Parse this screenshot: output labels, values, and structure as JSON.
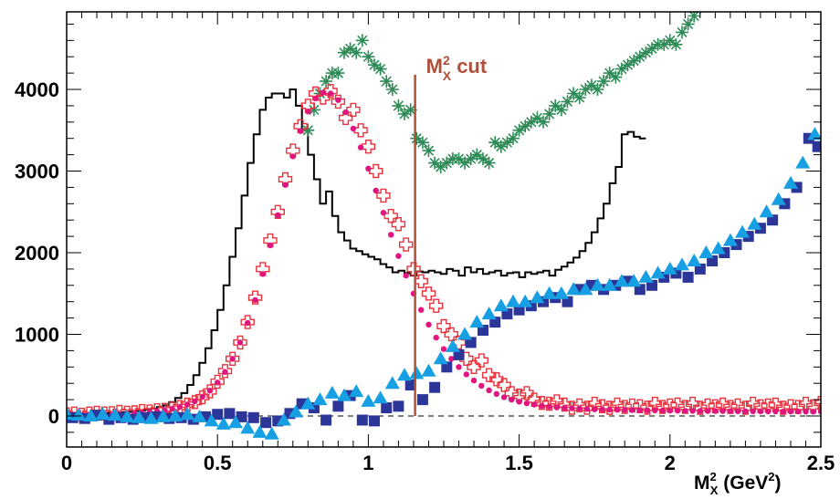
{
  "chart_data": {
    "type": "scatter",
    "title": "",
    "xlabel": {
      "base": "M",
      "sup": "2",
      "sub": "X",
      "unit": " (GeV",
      "unit_sup": "2",
      "unit_close": ")"
    },
    "ylabel": "",
    "xlim": [
      0,
      2.5
    ],
    "ylim": [
      -380,
      4950
    ],
    "x_ticks": [
      {
        "value": 0,
        "label": "0"
      },
      {
        "value": 0.5,
        "label": "0.5"
      },
      {
        "value": 1,
        "label": "1"
      },
      {
        "value": 1.5,
        "label": "1.5"
      },
      {
        "value": 2,
        "label": "2"
      },
      {
        "value": 2.5,
        "label": "2.5"
      }
    ],
    "y_ticks": [
      {
        "value": 0,
        "label": "0"
      },
      {
        "value": 1000,
        "label": "1000"
      },
      {
        "value": 2000,
        "label": "2000"
      },
      {
        "value": 3000,
        "label": "3000"
      },
      {
        "value": 4000,
        "label": "4000"
      }
    ],
    "cut": {
      "x": 1.155,
      "y_top": 4180,
      "label": {
        "base": "M",
        "sup": "2",
        "sub": "X",
        "text": " cut"
      },
      "color": "#b0503a"
    },
    "zero_line": {
      "y": 0,
      "style": "dashed"
    },
    "histogram": {
      "name": "",
      "color": "#000000",
      "bin_width": 0.02,
      "x_start": 0.0,
      "values": [
        10,
        15,
        20,
        20,
        25,
        30,
        35,
        40,
        40,
        45,
        50,
        60,
        70,
        80,
        90,
        110,
        130,
        170,
        220,
        280,
        380,
        500,
        650,
        830,
        1050,
        1300,
        1600,
        1950,
        2300,
        2700,
        3100,
        3450,
        3750,
        3900,
        3950,
        3950,
        3900,
        4000,
        3800,
        3500,
        3200,
        2900,
        2600,
        2750,
        2450,
        2250,
        2150,
        2050,
        2020,
        1980,
        1950,
        1920,
        1860,
        1820,
        1760,
        1780,
        1750,
        1720,
        1770,
        1760,
        1780,
        1760,
        1740,
        1800,
        1780,
        1720,
        1820,
        1760,
        1800,
        1740,
        1760,
        1780,
        1720,
        1750,
        1760,
        1700,
        1760,
        1740,
        1760,
        1780,
        1720,
        1790,
        1830,
        1880,
        1940,
        2020,
        2120,
        2250,
        2420,
        2600,
        2850,
        3050,
        3450,
        3480,
        3420,
        3400
      ]
    },
    "series": [
      {
        "name": "",
        "marker": "asterisk",
        "color": "#2e8b57",
        "x": [
          0.8,
          0.82,
          0.84,
          0.86,
          0.88,
          0.9,
          0.92,
          0.94,
          0.96,
          0.98,
          1.0,
          1.02,
          1.04,
          1.06,
          1.08,
          1.1,
          1.12,
          1.14,
          1.16,
          1.18,
          1.2,
          1.22,
          1.24,
          1.26,
          1.28,
          1.3,
          1.32,
          1.34,
          1.36,
          1.38,
          1.4,
          1.42,
          1.44,
          1.46,
          1.48,
          1.5,
          1.52,
          1.54,
          1.56,
          1.58,
          1.6,
          1.62,
          1.64,
          1.66,
          1.68,
          1.7,
          1.72,
          1.74,
          1.76,
          1.78,
          1.8,
          1.82,
          1.84,
          1.86,
          1.88,
          1.9,
          1.92,
          1.94,
          1.96,
          1.98,
          2.0,
          2.02,
          2.04,
          2.06,
          2.08,
          2.1
        ],
        "y": [
          3500,
          3750,
          3950,
          4100,
          4200,
          4200,
          4450,
          4500,
          4450,
          4600,
          4400,
          4300,
          4250,
          4100,
          4000,
          3800,
          3700,
          3750,
          3400,
          3350,
          3250,
          3100,
          3050,
          3100,
          3150,
          3150,
          3100,
          3150,
          3200,
          3150,
          3100,
          3350,
          3300,
          3350,
          3400,
          3500,
          3550,
          3600,
          3650,
          3600,
          3700,
          3800,
          3750,
          3850,
          3950,
          3900,
          4000,
          4050,
          4000,
          4100,
          4200,
          4150,
          4250,
          4300,
          4350,
          4400,
          4450,
          4500,
          4550,
          4550,
          4600,
          4550,
          4700,
          4800,
          4900,
          5000
        ]
      },
      {
        "name": "",
        "marker": "open-cross",
        "color": "#e8323c",
        "x": [
          0.0,
          0.025,
          0.05,
          0.075,
          0.1,
          0.125,
          0.15,
          0.175,
          0.2,
          0.225,
          0.25,
          0.275,
          0.3,
          0.325,
          0.35,
          0.375,
          0.4,
          0.425,
          0.45,
          0.475,
          0.5,
          0.525,
          0.55,
          0.575,
          0.6,
          0.625,
          0.65,
          0.675,
          0.7,
          0.725,
          0.75,
          0.775,
          0.8,
          0.825,
          0.85,
          0.875,
          0.9,
          0.925,
          0.95,
          0.975,
          1.0,
          1.025,
          1.05,
          1.075,
          1.1,
          1.125,
          1.15,
          1.175,
          1.2,
          1.225,
          1.25,
          1.275,
          1.3,
          1.325,
          1.35,
          1.375,
          1.4,
          1.425,
          1.45,
          1.475,
          1.5,
          1.525,
          1.55,
          1.575,
          1.6,
          1.625,
          1.65,
          1.675,
          1.7,
          1.725,
          1.75,
          1.775,
          1.8,
          1.825,
          1.85,
          1.875,
          1.9,
          1.925,
          1.95,
          1.975,
          2.0,
          2.025,
          2.05,
          2.075,
          2.1,
          2.125,
          2.15,
          2.175,
          2.2,
          2.225,
          2.25,
          2.275,
          2.3,
          2.325,
          2.35,
          2.375,
          2.4,
          2.425,
          2.45,
          2.475,
          2.5
        ],
        "y": [
          20,
          30,
          15,
          30,
          40,
          30,
          35,
          50,
          40,
          45,
          60,
          55,
          70,
          75,
          90,
          110,
          140,
          170,
          230,
          300,
          420,
          550,
          700,
          900,
          1150,
          1450,
          1800,
          2150,
          2500,
          2900,
          3250,
          3550,
          3800,
          3950,
          3900,
          3980,
          3850,
          3650,
          3750,
          3500,
          3300,
          3000,
          2700,
          2450,
          2350,
          2100,
          1800,
          1650,
          1500,
          1350,
          1100,
          1000,
          900,
          700,
          600,
          680,
          500,
          450,
          380,
          280,
          250,
          280,
          200,
          160,
          150,
          180,
          140,
          100,
          130,
          100,
          150,
          120,
          100,
          140,
          110,
          130,
          120,
          100,
          150,
          110,
          130,
          140,
          110,
          150,
          100,
          130,
          120,
          140,
          110,
          130,
          100,
          150,
          120,
          130,
          140,
          100,
          120,
          110,
          150,
          120,
          160
        ]
      },
      {
        "name": "",
        "marker": "dot",
        "color": "#e0157f",
        "x": [
          0.0,
          0.025,
          0.05,
          0.075,
          0.1,
          0.125,
          0.15,
          0.175,
          0.2,
          0.225,
          0.25,
          0.275,
          0.3,
          0.325,
          0.35,
          0.375,
          0.4,
          0.425,
          0.45,
          0.475,
          0.5,
          0.525,
          0.55,
          0.575,
          0.6,
          0.625,
          0.65,
          0.675,
          0.7,
          0.725,
          0.75,
          0.775,
          0.8,
          0.825,
          0.85,
          0.875,
          0.9,
          0.925,
          0.95,
          0.975,
          1.0,
          1.025,
          1.05,
          1.075,
          1.1,
          1.125,
          1.15,
          1.175,
          1.2,
          1.225,
          1.25,
          1.275,
          1.3,
          1.325,
          1.35,
          1.375,
          1.4,
          1.425,
          1.45,
          1.475,
          1.5,
          1.525,
          1.55,
          1.575,
          1.6,
          1.625,
          1.65,
          1.675,
          1.7,
          1.725,
          1.75,
          1.775,
          1.8,
          1.825,
          1.85,
          1.875,
          1.9,
          1.925,
          1.95,
          1.975,
          2.0,
          2.025,
          2.05,
          2.075,
          2.1,
          2.125,
          2.15,
          2.175,
          2.2,
          2.225,
          2.25,
          2.275,
          2.3,
          2.325,
          2.35,
          2.375,
          2.4,
          2.425,
          2.45,
          2.475,
          2.5
        ],
        "y": [
          10,
          10,
          12,
          14,
          16,
          18,
          20,
          24,
          28,
          33,
          40,
          48,
          58,
          70,
          88,
          110,
          140,
          180,
          235,
          310,
          410,
          540,
          700,
          900,
          1140,
          1420,
          1740,
          2090,
          2460,
          2830,
          3180,
          3490,
          3730,
          3890,
          3960,
          3950,
          3870,
          3720,
          3520,
          3290,
          3030,
          2760,
          2490,
          2220,
          1960,
          1720,
          1500,
          1300,
          1120,
          960,
          820,
          700,
          600,
          510,
          435,
          370,
          315,
          270,
          230,
          200,
          175,
          155,
          140,
          125,
          115,
          105,
          100,
          95,
          90,
          86,
          82,
          80,
          78,
          76,
          74,
          72,
          70,
          69,
          68,
          67,
          66,
          65,
          64,
          63,
          62,
          61,
          60,
          60,
          59,
          58,
          58,
          57,
          57,
          56,
          56,
          55,
          55,
          55,
          54,
          54,
          54
        ]
      },
      {
        "name": "",
        "marker": "square",
        "color": "#2c3598",
        "x": [
          0.02,
          0.06,
          0.1,
          0.14,
          0.18,
          0.22,
          0.26,
          0.3,
          0.34,
          0.38,
          0.42,
          0.46,
          0.5,
          0.54,
          0.58,
          0.62,
          0.66,
          0.7,
          0.74,
          0.78,
          0.82,
          0.86,
          0.9,
          0.94,
          0.98,
          1.02,
          1.06,
          1.1,
          1.14,
          1.18,
          1.22,
          1.26,
          1.3,
          1.34,
          1.38,
          1.42,
          1.46,
          1.5,
          1.54,
          1.58,
          1.62,
          1.66,
          1.7,
          1.74,
          1.78,
          1.82,
          1.86,
          1.9,
          1.94,
          1.98,
          2.02,
          2.06,
          2.1,
          2.14,
          2.18,
          2.22,
          2.26,
          2.3,
          2.34,
          2.38,
          2.42,
          2.46,
          2.49
        ],
        "y": [
          -20,
          -30,
          10,
          -40,
          -20,
          -40,
          -20,
          -10,
          -30,
          -20,
          -40,
          -10,
          20,
          30,
          -10,
          -20,
          -80,
          -60,
          30,
          150,
          100,
          -50,
          120,
          250,
          -50,
          -60,
          100,
          120,
          380,
          200,
          350,
          600,
          750,
          900,
          1050,
          1150,
          1250,
          1300,
          1350,
          1400,
          1450,
          1400,
          1550,
          1600,
          1550,
          1600,
          1650,
          1550,
          1600,
          1700,
          1750,
          1700,
          1800,
          1900,
          2000,
          2100,
          2200,
          2300,
          2400,
          2600,
          2800,
          3400,
          3300
        ]
      },
      {
        "name": "",
        "marker": "triangle",
        "color": "#16a0e3",
        "x": [
          0.0,
          0.04,
          0.08,
          0.12,
          0.16,
          0.2,
          0.24,
          0.28,
          0.32,
          0.36,
          0.4,
          0.44,
          0.48,
          0.52,
          0.56,
          0.6,
          0.64,
          0.68,
          0.72,
          0.76,
          0.8,
          0.84,
          0.88,
          0.92,
          0.96,
          1.0,
          1.04,
          1.08,
          1.12,
          1.16,
          1.2,
          1.24,
          1.28,
          1.32,
          1.36,
          1.4,
          1.44,
          1.48,
          1.52,
          1.56,
          1.6,
          1.64,
          1.68,
          1.72,
          1.76,
          1.8,
          1.84,
          1.88,
          1.92,
          1.96,
          2.0,
          2.04,
          2.08,
          2.12,
          2.16,
          2.2,
          2.24,
          2.28,
          2.32,
          2.36,
          2.4,
          2.44,
          2.48
        ],
        "y": [
          20,
          10,
          0,
          20,
          10,
          -10,
          -20,
          -30,
          -10,
          0,
          20,
          -10,
          -60,
          -100,
          -80,
          -150,
          -200,
          -220,
          -50,
          50,
          150,
          200,
          280,
          250,
          300,
          180,
          220,
          400,
          500,
          520,
          550,
          700,
          850,
          1000,
          1150,
          1250,
          1350,
          1400,
          1400,
          1450,
          1500,
          1500,
          1550,
          1550,
          1600,
          1600,
          1650,
          1650,
          1700,
          1750,
          1800,
          1850,
          1900,
          2000,
          2050,
          2150,
          2250,
          2350,
          2500,
          2650,
          2850,
          3100,
          3450
        ]
      }
    ]
  }
}
